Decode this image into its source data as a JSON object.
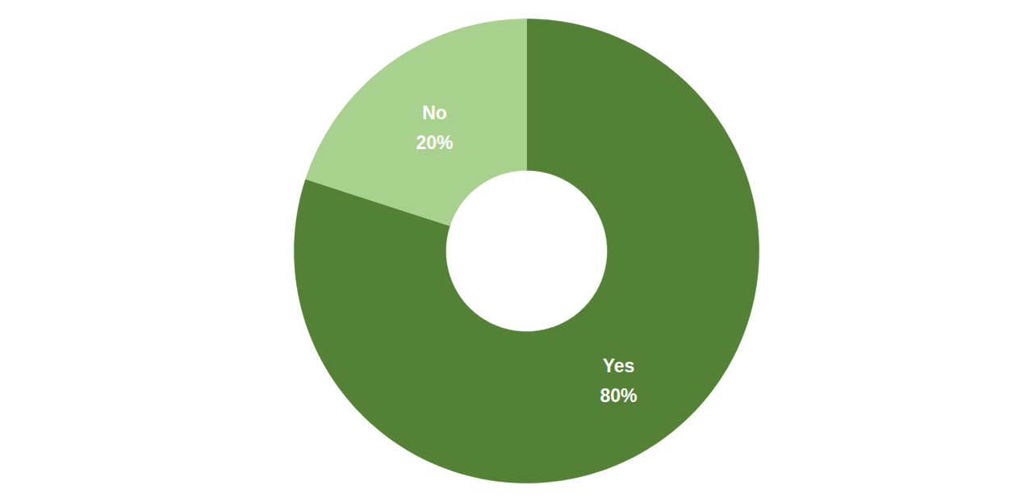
{
  "chart_data": {
    "type": "donut",
    "categories": [
      "Yes",
      "No"
    ],
    "values": [
      80,
      20
    ],
    "value_labels": [
      "80%",
      "20%"
    ],
    "colors": [
      "#538135",
      "#a9d18e"
    ],
    "data_labels": true
  }
}
